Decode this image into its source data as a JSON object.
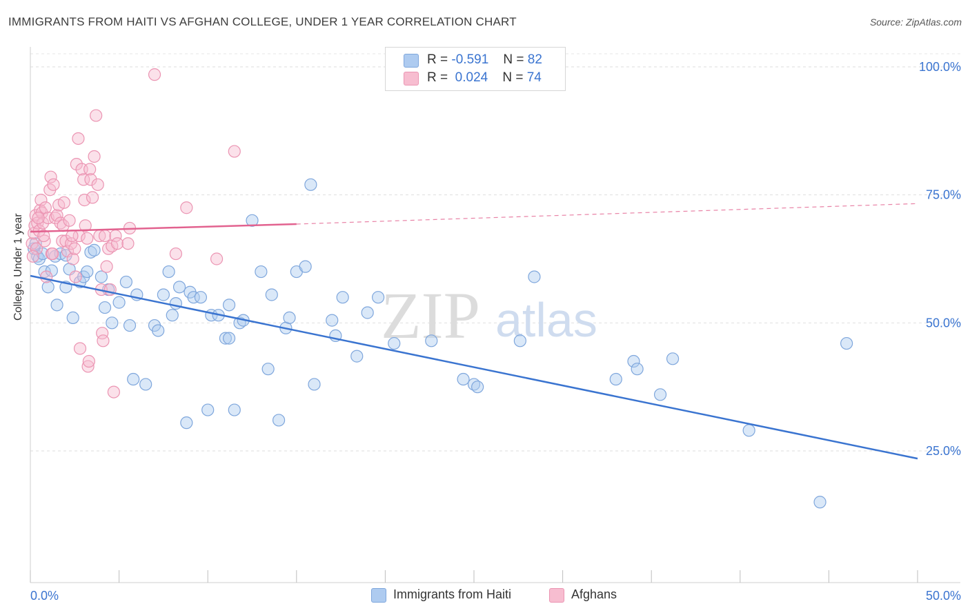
{
  "title": "IMMIGRANTS FROM HAITI VS AFGHAN COLLEGE, UNDER 1 YEAR CORRELATION CHART",
  "source": "Source: ZipAtlas.com",
  "watermark": {
    "zip": "ZIP",
    "atlas": "atlas"
  },
  "legend": {
    "rows": [
      {
        "r_label": "R =",
        "r_value": "-0.591",
        "n_label": "N =",
        "n_value": "82",
        "color": "#aecbf0"
      },
      {
        "r_label": "R =",
        "r_value": "0.024",
        "n_label": "N =",
        "n_value": "74",
        "color": "#f7bdd0"
      }
    ]
  },
  "bottom_legend": [
    {
      "label": "Immigrants from Haiti",
      "color": "#aecbf0"
    },
    {
      "label": "Afghans",
      "color": "#f7bdd0"
    }
  ],
  "chart_data": {
    "type": "scatter",
    "title": "IMMIGRANTS FROM HAITI VS AFGHAN COLLEGE, UNDER 1 YEAR CORRELATION CHART",
    "xlabel": "",
    "ylabel": "College, Under 1 year",
    "xlim": [
      0,
      50
    ],
    "ylim": [
      0,
      102
    ],
    "x_tick_labels": [
      "0.0%",
      "50.0%"
    ],
    "y_ticks": [
      25,
      50,
      75,
      100
    ],
    "y_tick_labels": [
      "25.0%",
      "50.0%",
      "75.0%",
      "100.0%"
    ],
    "grid": true,
    "legend_position": "top-center",
    "series": [
      {
        "name": "Immigrants from Haiti",
        "color": "#3a74d0",
        "fill": "#aecbf0",
        "trend": {
          "x": [
            0,
            50
          ],
          "y": [
            59.2,
            23.5
          ],
          "style": "solid"
        },
        "points": [
          [
            0.2,
            64.5
          ],
          [
            0.4,
            63.0
          ],
          [
            0.5,
            62.5
          ],
          [
            0.7,
            63.5
          ],
          [
            0.8,
            60.0
          ],
          [
            1.0,
            57.0
          ],
          [
            1.2,
            60.2
          ],
          [
            1.4,
            63.0
          ],
          [
            1.5,
            53.5
          ],
          [
            1.7,
            63.5
          ],
          [
            2.0,
            63.2
          ],
          [
            2.2,
            60.5
          ],
          [
            2.0,
            57.0
          ],
          [
            2.4,
            51.0
          ],
          [
            2.8,
            58.0
          ],
          [
            3.0,
            59.0
          ],
          [
            3.2,
            60.0
          ],
          [
            3.4,
            63.8
          ],
          [
            3.6,
            64.2
          ],
          [
            4.0,
            59.0
          ],
          [
            4.2,
            53.0
          ],
          [
            4.4,
            56.5
          ],
          [
            4.6,
            50.0
          ],
          [
            5.0,
            54.0
          ],
          [
            5.4,
            58.0
          ],
          [
            5.6,
            49.5
          ],
          [
            5.8,
            39.0
          ],
          [
            6.5,
            38.0
          ],
          [
            6.0,
            55.5
          ],
          [
            7.0,
            49.5
          ],
          [
            7.2,
            48.5
          ],
          [
            7.5,
            55.5
          ],
          [
            7.8,
            60.0
          ],
          [
            8.0,
            51.5
          ],
          [
            8.2,
            53.8
          ],
          [
            8.4,
            57.0
          ],
          [
            8.8,
            30.5
          ],
          [
            9.0,
            56.0
          ],
          [
            9.2,
            55.0
          ],
          [
            9.6,
            55.0
          ],
          [
            10.0,
            33.0
          ],
          [
            10.2,
            51.5
          ],
          [
            10.6,
            51.5
          ],
          [
            11.0,
            47.0
          ],
          [
            11.2,
            53.5
          ],
          [
            11.5,
            33.0
          ],
          [
            11.8,
            50.0
          ],
          [
            12.5,
            70.0
          ],
          [
            11.2,
            47.0
          ],
          [
            12.0,
            50.5
          ],
          [
            13.0,
            60.0
          ],
          [
            13.4,
            41.0
          ],
          [
            13.6,
            55.5
          ],
          [
            14.0,
            31.0
          ],
          [
            14.4,
            49.0
          ],
          [
            14.6,
            51.0
          ],
          [
            15.0,
            60.0
          ],
          [
            15.5,
            61.0
          ],
          [
            15.8,
            77.0
          ],
          [
            16.0,
            38.0
          ],
          [
            17.0,
            50.5
          ],
          [
            17.2,
            47.5
          ],
          [
            17.6,
            55.0
          ],
          [
            18.4,
            43.5
          ],
          [
            19.0,
            52.0
          ],
          [
            19.6,
            55.0
          ],
          [
            20.5,
            46.0
          ],
          [
            22.6,
            46.5
          ],
          [
            24.4,
            39.0
          ],
          [
            25.0,
            38.0
          ],
          [
            25.2,
            37.5
          ],
          [
            27.6,
            46.5
          ],
          [
            28.4,
            59.0
          ],
          [
            33.0,
            39.0
          ],
          [
            34.0,
            42.5
          ],
          [
            34.2,
            41.0
          ],
          [
            35.5,
            36.0
          ],
          [
            36.2,
            43.0
          ],
          [
            40.5,
            29.0
          ],
          [
            44.5,
            15.0
          ],
          [
            46.0,
            46.0
          ],
          [
            0.3,
            65.5
          ]
        ]
      },
      {
        "name": "Afghans",
        "color": "#e2628f",
        "fill": "#f7bdd0",
        "trend": {
          "x": [
            0,
            15
          ],
          "y": [
            67.8,
            69.3
          ],
          "style": "solid"
        },
        "trend_extension": {
          "x": [
            15,
            50
          ],
          "y": [
            69.3,
            73.3
          ],
          "style": "dashed"
        },
        "points": [
          [
            0.1,
            65.5
          ],
          [
            0.2,
            67.5
          ],
          [
            0.25,
            69.0
          ],
          [
            0.3,
            71.0
          ],
          [
            0.35,
            64.5
          ],
          [
            0.4,
            69.5
          ],
          [
            0.5,
            68.0
          ],
          [
            0.55,
            72.0
          ],
          [
            0.6,
            74.0
          ],
          [
            0.65,
            71.5
          ],
          [
            0.7,
            69.5
          ],
          [
            0.8,
            66.0
          ],
          [
            0.85,
            72.5
          ],
          [
            0.9,
            59.0
          ],
          [
            1.0,
            70.5
          ],
          [
            1.1,
            76.0
          ],
          [
            1.15,
            78.5
          ],
          [
            1.2,
            63.5
          ],
          [
            1.3,
            77.0
          ],
          [
            1.4,
            70.5
          ],
          [
            1.5,
            71.0
          ],
          [
            1.6,
            73.0
          ],
          [
            1.7,
            69.5
          ],
          [
            1.8,
            66.0
          ],
          [
            1.85,
            69.0
          ],
          [
            1.9,
            73.5
          ],
          [
            2.0,
            66.0
          ],
          [
            2.1,
            64.0
          ],
          [
            2.2,
            70.0
          ],
          [
            2.3,
            65.5
          ],
          [
            2.4,
            62.5
          ],
          [
            2.5,
            64.5
          ],
          [
            2.55,
            59.0
          ],
          [
            2.6,
            81.0
          ],
          [
            2.7,
            86.0
          ],
          [
            2.75,
            67.0
          ],
          [
            2.8,
            45.0
          ],
          [
            2.9,
            80.0
          ],
          [
            3.0,
            78.0
          ],
          [
            3.05,
            74.0
          ],
          [
            3.1,
            69.0
          ],
          [
            3.2,
            66.5
          ],
          [
            3.25,
            41.5
          ],
          [
            3.3,
            42.5
          ],
          [
            3.35,
            80.0
          ],
          [
            3.4,
            78.0
          ],
          [
            3.5,
            74.5
          ],
          [
            3.6,
            82.5
          ],
          [
            3.7,
            90.5
          ],
          [
            3.8,
            77.0
          ],
          [
            3.9,
            67.0
          ],
          [
            4.0,
            56.5
          ],
          [
            4.05,
            48.0
          ],
          [
            4.1,
            46.5
          ],
          [
            4.2,
            67.0
          ],
          [
            4.3,
            61.0
          ],
          [
            4.4,
            64.5
          ],
          [
            4.5,
            56.5
          ],
          [
            4.6,
            65.0
          ],
          [
            4.7,
            36.5
          ],
          [
            4.8,
            67.0
          ],
          [
            4.9,
            65.5
          ],
          [
            5.5,
            65.5
          ],
          [
            5.6,
            68.5
          ],
          [
            7.0,
            98.5
          ],
          [
            8.2,
            63.5
          ],
          [
            8.8,
            72.5
          ],
          [
            10.5,
            62.5
          ],
          [
            11.5,
            83.5
          ],
          [
            0.45,
            70.5
          ],
          [
            0.75,
            67.0
          ],
          [
            1.25,
            63.5
          ],
          [
            2.35,
            67.0
          ],
          [
            0.15,
            63.0
          ]
        ]
      }
    ]
  }
}
